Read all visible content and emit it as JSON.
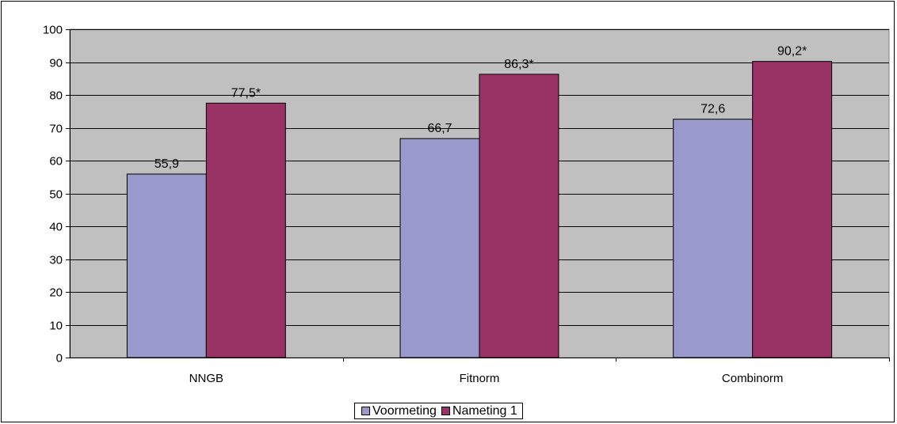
{
  "chart_data": {
    "type": "bar",
    "categories": [
      "NNGB",
      "Fitnorm",
      "Combinorm"
    ],
    "series": [
      {
        "name": "Voormeting",
        "values": [
          55.9,
          66.7,
          72.6
        ],
        "labels": [
          "55,9",
          "66,7",
          "72,6"
        ],
        "color": "#9999CC"
      },
      {
        "name": "Nameting 1",
        "values": [
          77.5,
          86.3,
          90.2
        ],
        "labels": [
          "77,5*",
          "86,3*",
          "90,2*"
        ],
        "color": "#993366"
      }
    ],
    "ylim": [
      0,
      100
    ],
    "yticks": [
      0,
      10,
      20,
      30,
      40,
      50,
      60,
      70,
      80,
      90,
      100
    ],
    "grid": true,
    "plot_background": "#C0C0C0",
    "legend_position": "bottom"
  }
}
